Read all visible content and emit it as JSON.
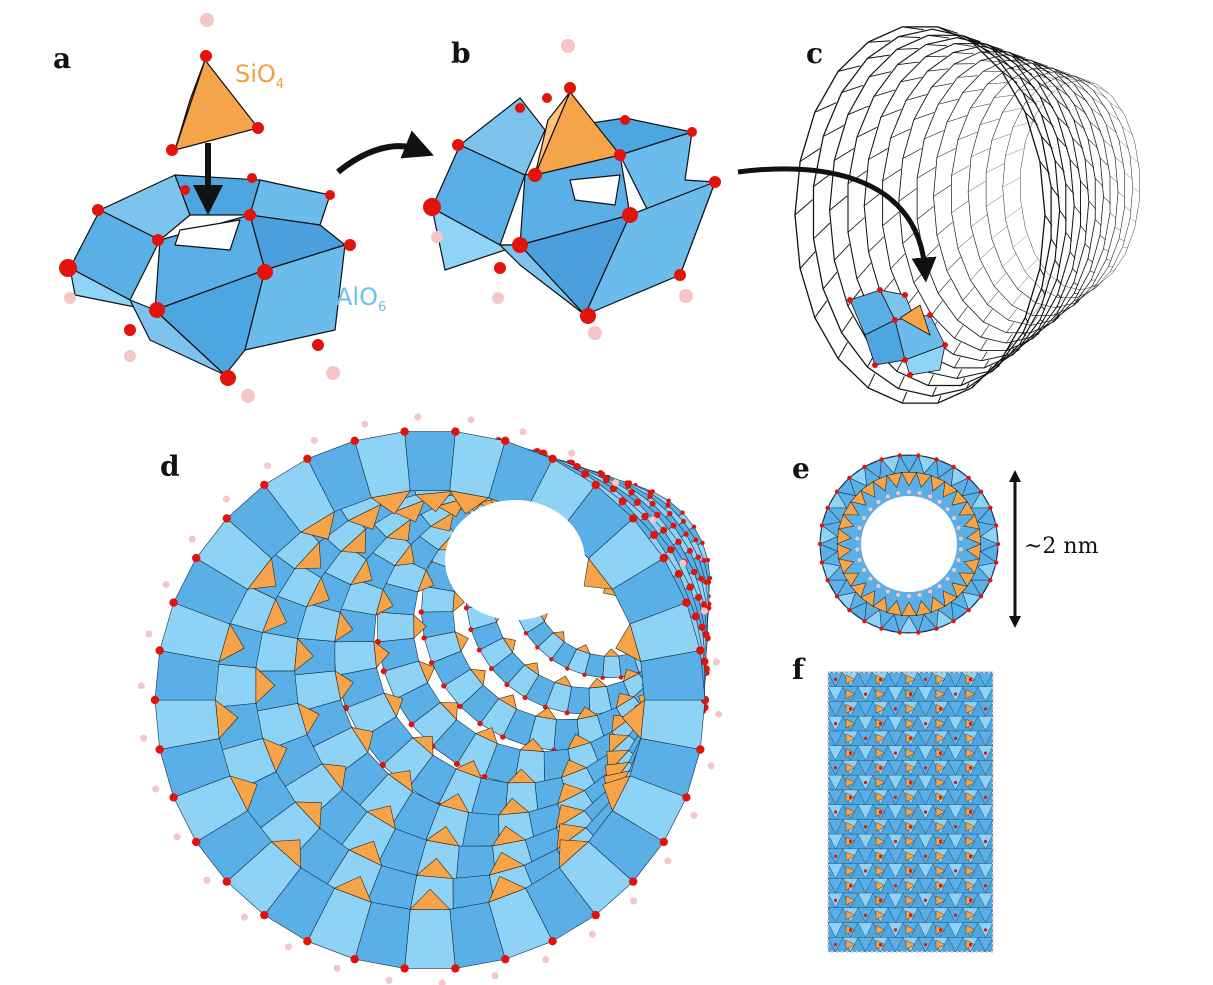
{
  "panels": {
    "a": "a",
    "b": "b",
    "c": "c",
    "d": "d",
    "e": "e",
    "f": "f"
  },
  "labels": {
    "sio4": {
      "base": "SiO",
      "sub": "4",
      "color": "#f0a040"
    },
    "alo6": {
      "base": "AlO",
      "sub": "6",
      "color": "#6cc0ee"
    }
  },
  "scale_label": "~2 nm",
  "colors": {
    "alo6_fill": "#5aafe6",
    "alo6_light": "#8ed2f6",
    "sio4_fill": "#f5a44a",
    "sio4_light": "#ffc27a",
    "oxygen": "#e2130a",
    "hydrogen": "#f4c6c6",
    "edge": "#101010",
    "arrow": "#111111"
  }
}
